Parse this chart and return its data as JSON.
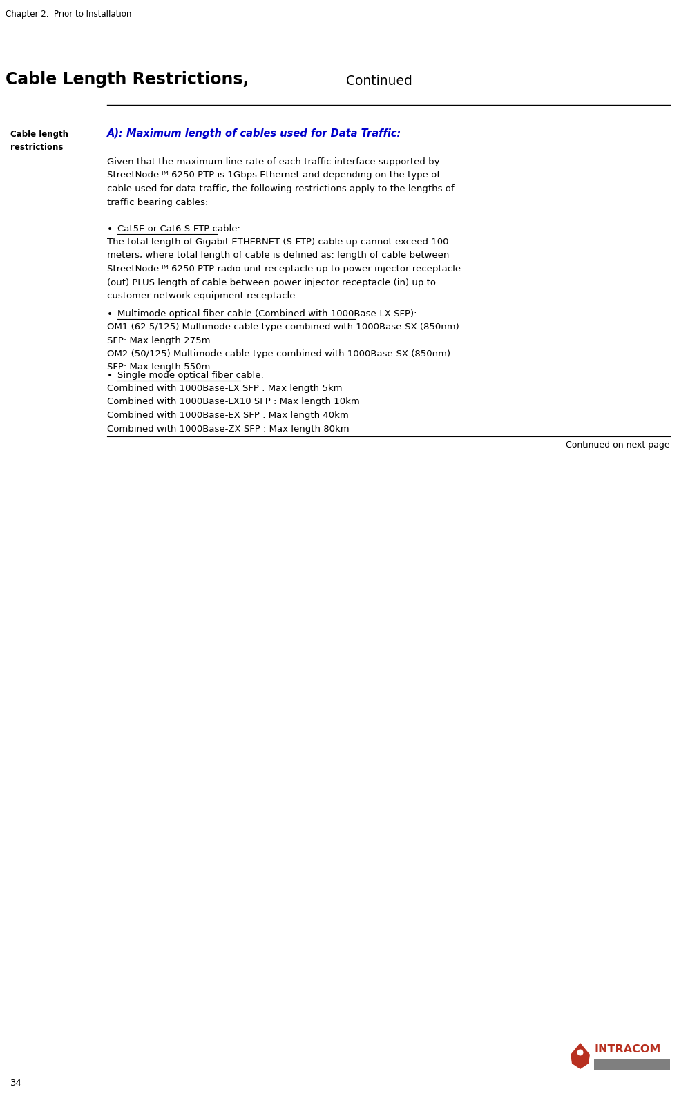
{
  "bg_color": "#ffffff",
  "header_text": "Chapter 2.  Prior to Installation",
  "title_bold": "Cable Length Restrictions,",
  "title_continued": " Continued",
  "left_label_line1": "Cable length",
  "left_label_line2": "restrictions",
  "section_heading": "A): Maximum length of cables used for Data Traffic:",
  "para1_lines": [
    "Given that the maximum line rate of each traffic interface supported by",
    "StreetNodeᴴᴹ 6250 PTP is 1Gbps Ethernet and depending on the type of",
    "cable used for data traffic, the following restrictions apply to the lengths of",
    "traffic bearing cables:"
  ],
  "bullet1_heading": "Cat5E or Cat6 S-FTP cable:",
  "bullet1_body": [
    "The total length of Gigabit ETHERNET (S-FTP) cable up cannot exceed 100",
    "meters, where total length of cable is defined as: length of cable between",
    "StreetNodeᴴᴹ 6250 PTP radio unit receptacle up to power injector receptacle",
    "(out) PLUS length of cable between power injector receptacle (in) up to",
    "customer network equipment receptacle."
  ],
  "bullet2_heading": "Multimode optical fiber cable (Combined with 1000Base-LX SFP):",
  "bullet2_body": [
    "OM1 (62.5/125) Multimode cable type combined with 1000Base-SX (850nm)",
    "SFP: Max length 275m",
    "OM2 (50/125) Multimode cable type combined with 1000Base-SX (850nm)",
    "SFP: Max length 550m"
  ],
  "bullet3_heading": "Single mode optical fiber cable:",
  "bullet3_body": [
    "Combined with 1000Base-LX SFP : Max length 5km",
    "Combined with 1000Base-LX10 SFP : Max length 10km",
    "Combined with 1000Base-EX SFP : Max length 40km",
    "Combined with 1000Base-ZX SFP : Max length 80km"
  ],
  "footer_continued": "Continued on next page",
  "page_number": "34",
  "header_color": "#000000",
  "title_color": "#000000",
  "heading_color": "#0000cc",
  "body_color": "#000000",
  "line_color": "#000000",
  "logo_red": "#b83020",
  "logo_gray": "#7f7f7f"
}
